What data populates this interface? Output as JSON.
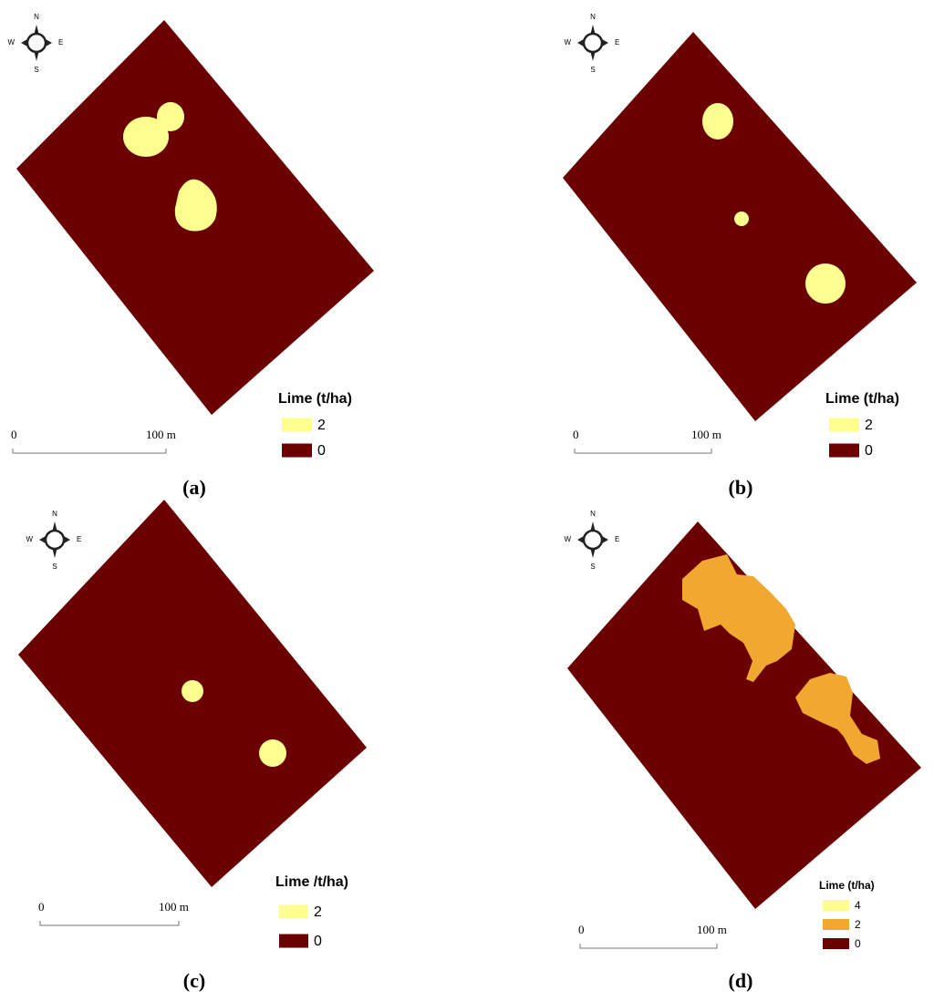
{
  "field_color": "#6b0000",
  "panels": [
    {
      "caption": "(a)",
      "compass": {
        "n": "N",
        "s": "S",
        "e": "E",
        "w": "W"
      },
      "legend": {
        "title": "Lime (t/ha)",
        "items": [
          {
            "label": "2",
            "color": "#ffff8f"
          },
          {
            "label": "0",
            "color": "#6b0000"
          }
        ]
      },
      "scale": {
        "start": "0",
        "end": "100 m"
      }
    },
    {
      "caption": "(b)",
      "compass": {
        "n": "N",
        "s": "S",
        "e": "E",
        "w": "W"
      },
      "legend": {
        "title": "Lime (t/ha)",
        "items": [
          {
            "label": "2",
            "color": "#ffff8f"
          },
          {
            "label": "0",
            "color": "#6b0000"
          }
        ]
      },
      "scale": {
        "start": "0",
        "end": "100 m"
      }
    },
    {
      "caption": "(c)",
      "compass": {
        "n": "N",
        "s": "S",
        "e": "E",
        "w": "W"
      },
      "legend": {
        "title": "Lime /t/ha)",
        "items": [
          {
            "label": "2",
            "color": "#ffff8f"
          },
          {
            "label": "0",
            "color": "#6b0000"
          }
        ]
      },
      "scale": {
        "start": "0",
        "end": "100 m"
      }
    },
    {
      "caption": "(d)",
      "compass": {
        "n": "N",
        "s": "S",
        "e": "E",
        "w": "W"
      },
      "legend": {
        "title": "Lime (t/ha)",
        "items": [
          {
            "label": "4",
            "color": "#ffff8f"
          },
          {
            "label": "2",
            "color": "#f0a830"
          },
          {
            "label": "0",
            "color": "#6b0000"
          }
        ]
      },
      "scale": {
        "start": "0",
        "end": "100 m"
      }
    }
  ]
}
